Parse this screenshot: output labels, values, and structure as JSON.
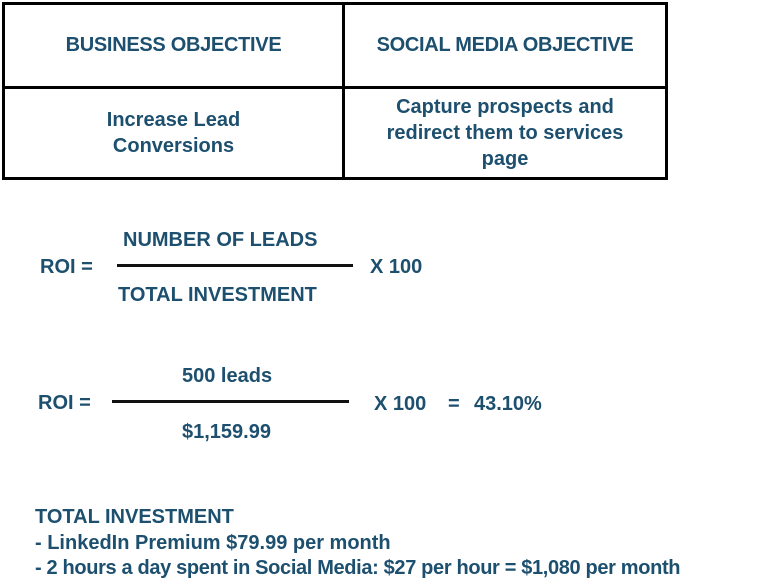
{
  "objectives_table": {
    "business_header": "BUSINESS OBJECTIVE",
    "social_header": "SOCIAL MEDIA OBJECTIVE",
    "business_value": "Increase Lead Conversions",
    "social_value": "Capture prospects and redirect them to services page"
  },
  "formula": {
    "label": "ROI =",
    "numerator": "NUMBER OF LEADS",
    "denominator": "TOTAL INVESTMENT",
    "multiplier": "X 100"
  },
  "calculation": {
    "label": "ROI =",
    "numerator": "500 leads",
    "denominator": "$1,159.99",
    "multiplier": "X 100",
    "equals": "=",
    "result": "43.10%"
  },
  "investment": {
    "heading": "TOTAL INVESTMENT",
    "items": [
      "- LinkedIn Premium $79.99 per month",
      "- 2 hours a day spent in Social Media: $27 per hour = $1,080 per month"
    ]
  }
}
